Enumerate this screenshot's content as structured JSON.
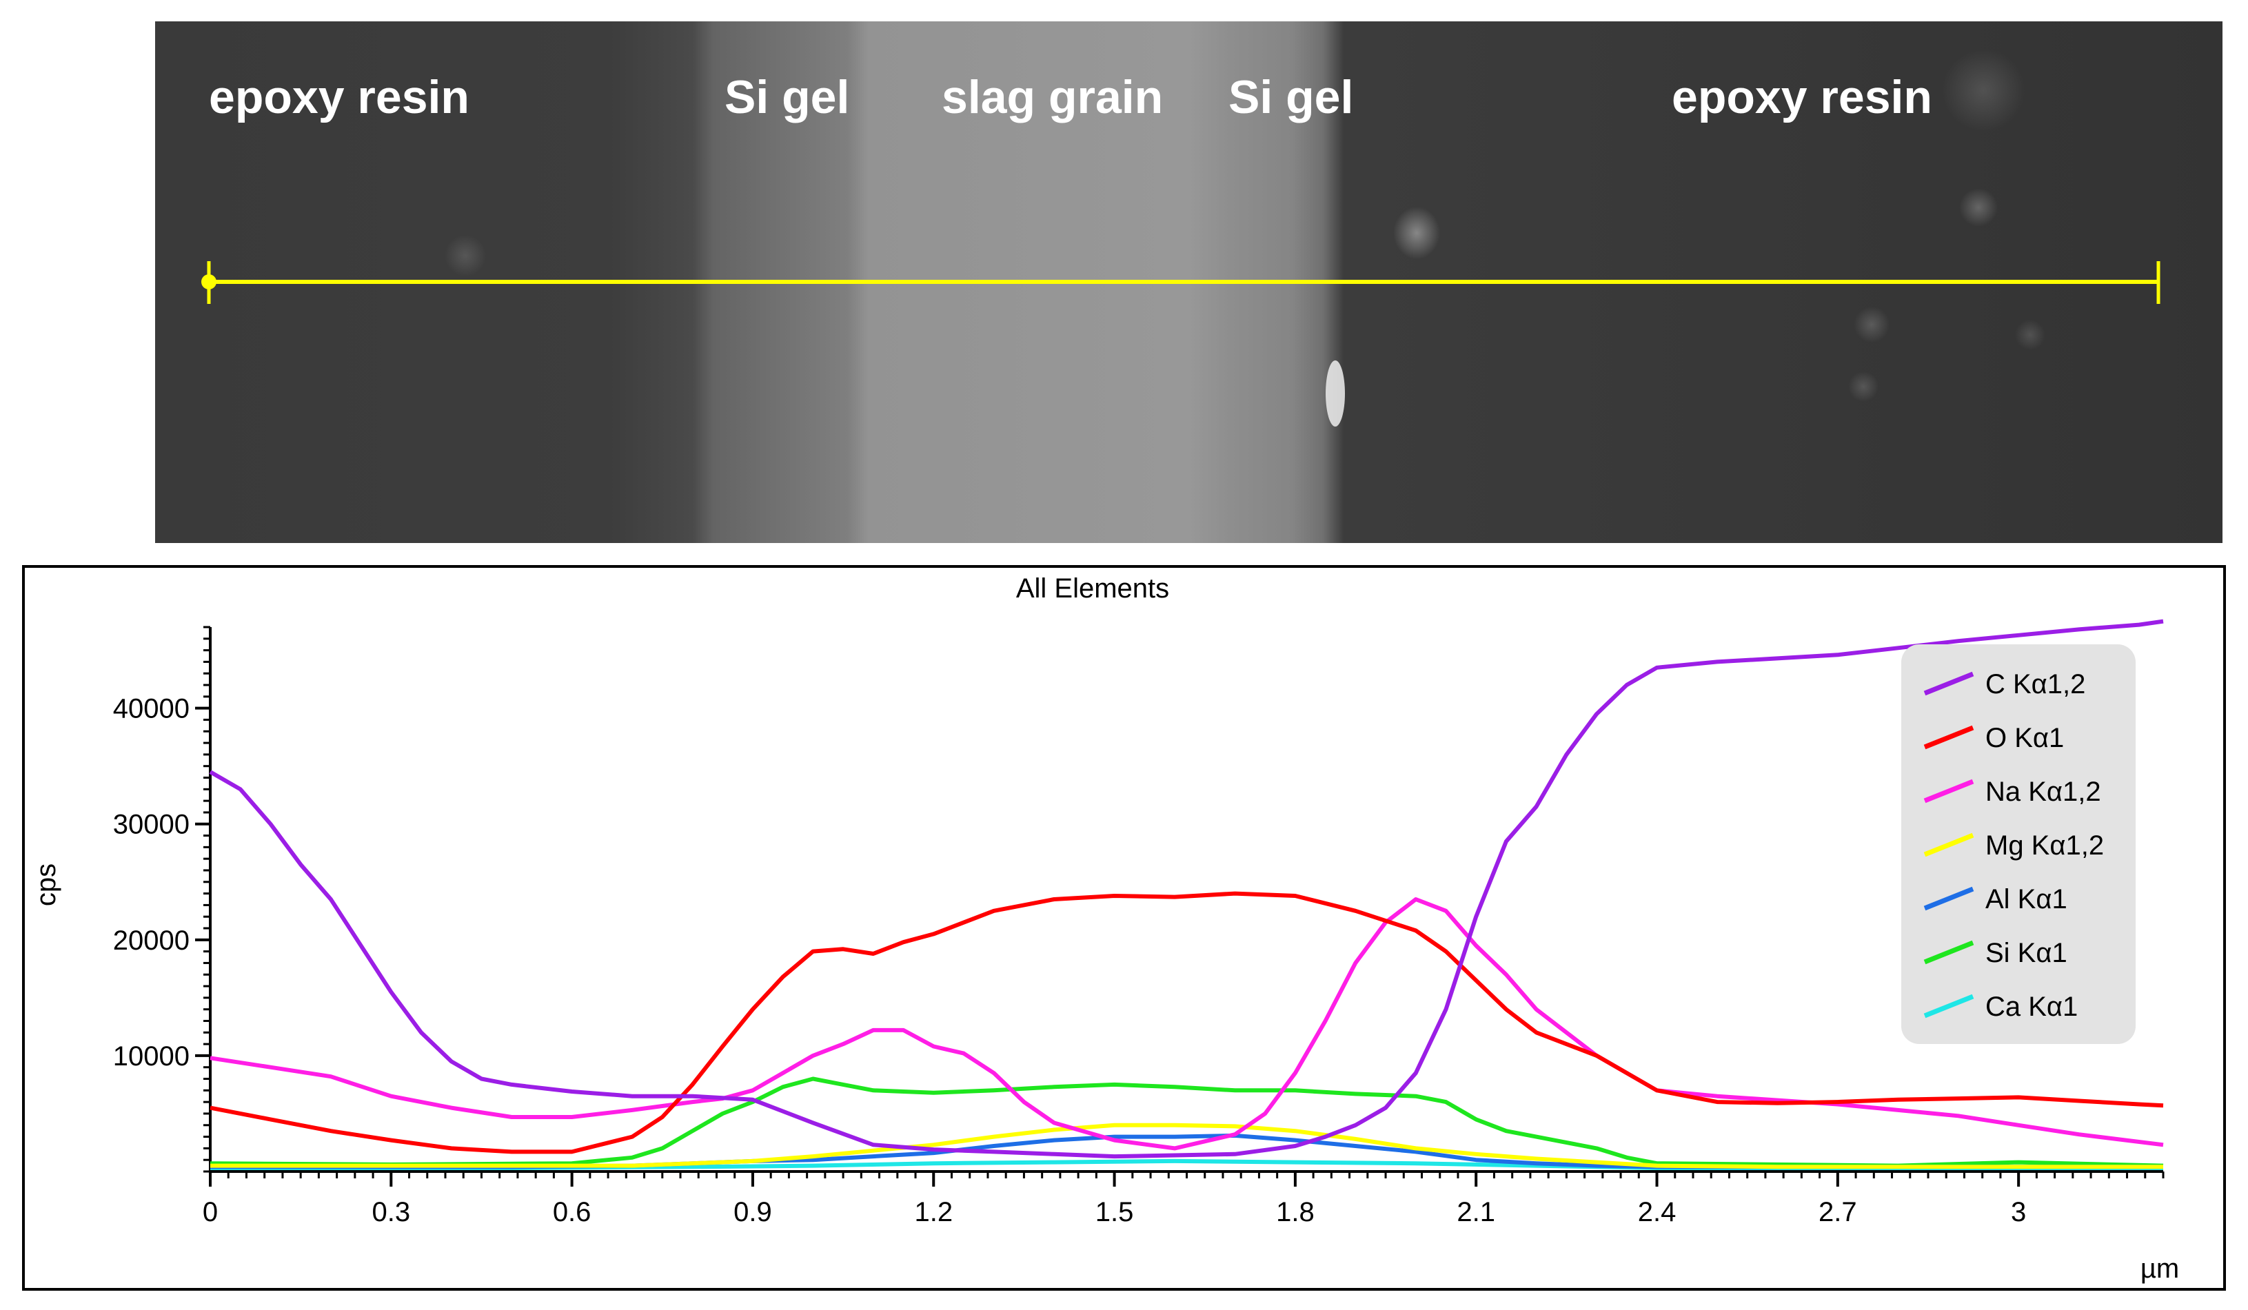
{
  "micrograph": {
    "labels": [
      "epoxy resin",
      "Si gel",
      "slag grain",
      "Si gel",
      "epoxy resin"
    ],
    "line_color": "#ffff00"
  },
  "chart_data": {
    "type": "line",
    "title": "All Elements",
    "xlabel": "µm",
    "ylabel": "cps",
    "xlim": [
      0,
      3.24
    ],
    "ylim": [
      0,
      47000
    ],
    "xticks": [
      0,
      0.3,
      0.6,
      0.9,
      1.2,
      1.5,
      1.8,
      2.1,
      2.4,
      2.7,
      3
    ],
    "xtick_labels": [
      "0",
      "0.3",
      "0.6",
      "0.9",
      "1.2",
      "1.5",
      "1.8",
      "2.1",
      "2.4",
      "2.7",
      "3"
    ],
    "yticks": [
      10000,
      20000,
      30000,
      40000
    ],
    "ytick_labels": [
      "10000",
      "20000",
      "30000",
      "40000"
    ],
    "legend_position": "top-right",
    "series": [
      {
        "name": "C Kα1,2",
        "color": "#9b1ee6",
        "x": [
          0,
          0.05,
          0.1,
          0.15,
          0.2,
          0.25,
          0.3,
          0.35,
          0.4,
          0.45,
          0.5,
          0.55,
          0.6,
          0.7,
          0.8,
          0.9,
          1.0,
          1.1,
          1.2,
          1.3,
          1.4,
          1.5,
          1.6,
          1.7,
          1.8,
          1.85,
          1.9,
          1.95,
          2.0,
          2.05,
          2.1,
          2.15,
          2.2,
          2.25,
          2.3,
          2.35,
          2.4,
          2.5,
          2.6,
          2.7,
          2.8,
          2.9,
          3.0,
          3.1,
          3.2,
          3.24
        ],
        "values": [
          34500,
          33000,
          30000,
          26500,
          23500,
          19500,
          15500,
          12000,
          9500,
          8000,
          7500,
          7200,
          6900,
          6500,
          6500,
          6200,
          4200,
          2300,
          1900,
          1700,
          1500,
          1300,
          1400,
          1500,
          2200,
          3000,
          4000,
          5500,
          8500,
          14000,
          22000,
          28500,
          31500,
          36000,
          39500,
          42000,
          43500,
          44000,
          44300,
          44600,
          45200,
          45800,
          46300,
          46800,
          47200,
          47500
        ]
      },
      {
        "name": "O Kα1",
        "color": "#ff0000",
        "x": [
          0,
          0.1,
          0.2,
          0.3,
          0.4,
          0.5,
          0.6,
          0.7,
          0.75,
          0.8,
          0.85,
          0.9,
          0.95,
          1.0,
          1.05,
          1.1,
          1.15,
          1.2,
          1.3,
          1.4,
          1.5,
          1.6,
          1.7,
          1.8,
          1.9,
          2.0,
          2.05,
          2.1,
          2.15,
          2.2,
          2.3,
          2.4,
          2.5,
          2.6,
          2.7,
          2.8,
          2.9,
          3.0,
          3.1,
          3.2,
          3.24
        ],
        "values": [
          5500,
          4500,
          3500,
          2700,
          2000,
          1700,
          1700,
          3000,
          4700,
          7500,
          10800,
          14000,
          16800,
          19000,
          19200,
          18800,
          19800,
          20500,
          22500,
          23500,
          23800,
          23700,
          24000,
          23800,
          22500,
          20800,
          19000,
          16500,
          14000,
          12000,
          10000,
          7000,
          6000,
          5900,
          6000,
          6200,
          6300,
          6400,
          6100,
          5800,
          5700
        ]
      },
      {
        "name": "Na Kα1,2",
        "color": "#ff1ee6",
        "x": [
          0,
          0.1,
          0.2,
          0.3,
          0.4,
          0.5,
          0.6,
          0.7,
          0.8,
          0.85,
          0.9,
          0.95,
          1.0,
          1.05,
          1.1,
          1.15,
          1.2,
          1.25,
          1.3,
          1.35,
          1.4,
          1.5,
          1.6,
          1.7,
          1.75,
          1.8,
          1.85,
          1.9,
          1.95,
          2.0,
          2.05,
          2.1,
          2.15,
          2.2,
          2.3,
          2.4,
          2.5,
          2.7,
          2.9,
          3.0,
          3.1,
          3.24
        ],
        "values": [
          9800,
          9000,
          8200,
          6500,
          5500,
          4700,
          4700,
          5300,
          6000,
          6300,
          7000,
          8500,
          10000,
          11000,
          12200,
          12200,
          10800,
          10200,
          8500,
          6000,
          4200,
          2700,
          2000,
          3200,
          5000,
          8500,
          13000,
          18000,
          21500,
          23500,
          22500,
          19500,
          17000,
          14000,
          10000,
          7000,
          6500,
          5800,
          4800,
          4000,
          3200,
          2300
        ]
      },
      {
        "name": "Mg Kα1,2",
        "color": "#ffff00",
        "x": [
          0,
          0.5,
          0.7,
          0.8,
          0.9,
          1.0,
          1.1,
          1.2,
          1.3,
          1.4,
          1.5,
          1.6,
          1.7,
          1.8,
          1.9,
          2.0,
          2.1,
          2.2,
          2.3,
          2.4,
          2.6,
          2.8,
          3.0,
          3.24
        ],
        "values": [
          500,
          500,
          500,
          700,
          900,
          1300,
          1800,
          2300,
          3000,
          3600,
          4000,
          4000,
          3900,
          3500,
          2800,
          2000,
          1500,
          1100,
          800,
          500,
          400,
          400,
          400,
          400
        ]
      },
      {
        "name": "Al Kα1",
        "color": "#1e6ee6",
        "x": [
          0,
          0.5,
          0.7,
          0.8,
          0.9,
          1.0,
          1.1,
          1.2,
          1.3,
          1.4,
          1.5,
          1.6,
          1.7,
          1.8,
          1.9,
          2.0,
          2.1,
          2.2,
          2.3,
          2.4,
          2.6,
          2.8,
          3.0,
          3.24
        ],
        "values": [
          400,
          400,
          500,
          700,
          900,
          1000,
          1300,
          1600,
          2200,
          2700,
          3000,
          3000,
          3100,
          2700,
          2200,
          1700,
          1000,
          700,
          500,
          400,
          400,
          400,
          400,
          400
        ]
      },
      {
        "name": "Si Kα1",
        "color": "#1ee61e",
        "x": [
          0,
          0.3,
          0.6,
          0.7,
          0.75,
          0.8,
          0.85,
          0.9,
          0.95,
          1.0,
          1.05,
          1.1,
          1.2,
          1.3,
          1.4,
          1.5,
          1.6,
          1.7,
          1.8,
          1.9,
          2.0,
          2.05,
          2.1,
          2.15,
          2.2,
          2.3,
          2.35,
          2.4,
          2.6,
          2.8,
          3.0,
          3.24
        ],
        "values": [
          700,
          600,
          700,
          1200,
          2000,
          3500,
          5000,
          6000,
          7300,
          8000,
          7500,
          7000,
          6800,
          7000,
          7300,
          7500,
          7300,
          7000,
          7000,
          6700,
          6500,
          6000,
          4500,
          3500,
          3000,
          2000,
          1200,
          700,
          600,
          500,
          800,
          500
        ]
      },
      {
        "name": "Ca Kα1",
        "color": "#1ee6e6",
        "x": [
          0,
          0.5,
          0.8,
          1.0,
          1.2,
          1.4,
          1.6,
          1.8,
          2.0,
          2.2,
          2.4,
          2.8,
          3.24
        ],
        "values": [
          300,
          300,
          400,
          500,
          700,
          800,
          900,
          800,
          700,
          500,
          300,
          300,
          300
        ]
      }
    ]
  }
}
